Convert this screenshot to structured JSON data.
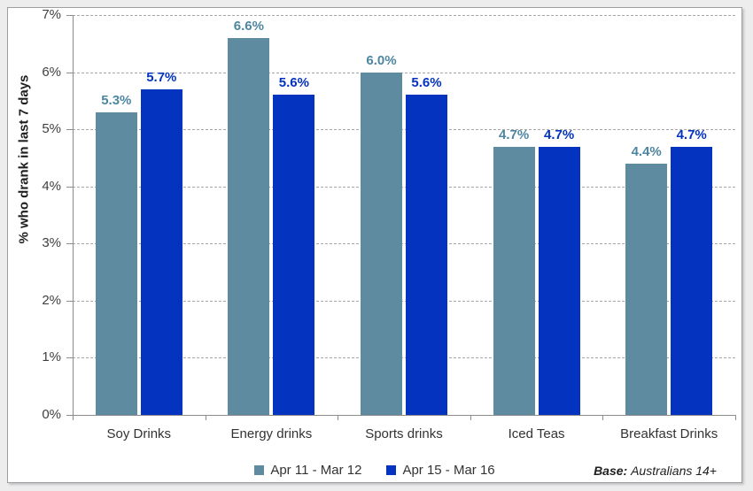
{
  "chart_data": {
    "type": "bar",
    "ylabel": "% who drank in last 7 days",
    "categories": [
      "Soy Drinks",
      "Energy drinks",
      "Sports drinks",
      "Iced Teas",
      "Breakfast Drinks"
    ],
    "series": [
      {
        "name": "Apr 11 - Mar 12",
        "color": "#5e8ba0",
        "label_color": "#4e86a1",
        "values": [
          5.3,
          6.6,
          6.0,
          4.7,
          4.4
        ]
      },
      {
        "name": "Apr 15 - Mar 16",
        "color": "#0433bf",
        "label_color": "#0433bf",
        "values": [
          5.7,
          5.6,
          5.6,
          4.7,
          4.7
        ]
      }
    ],
    "ylim": [
      0,
      7
    ],
    "ytick_step": 1,
    "ytick_labels": [
      "0%",
      "1%",
      "2%",
      "3%",
      "4%",
      "5%",
      "6%",
      "7%"
    ],
    "grid": "horizontal-dashed",
    "legend_position": "bottom",
    "colors": {
      "gridline": "#a6a6a6",
      "axis": "#8c8c8c",
      "tick_label": "#3f3f3f",
      "category_label": "#333333"
    }
  },
  "footer": {
    "base_label": "Base:",
    "base_value": "Australians 14+"
  }
}
